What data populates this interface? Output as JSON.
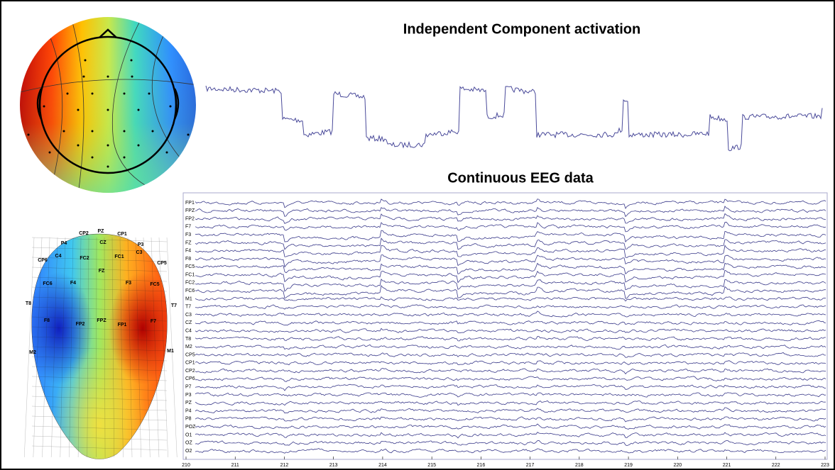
{
  "ic_title": "Independent Component activation",
  "eeg_title": "Continuous EEG data",
  "channels": [
    "FP1",
    "FPZ",
    "FP2",
    "F7",
    "F3",
    "FZ",
    "F4",
    "F8",
    "FC5",
    "FC1",
    "FC2",
    "FC6",
    "M1",
    "T7",
    "C3",
    "CZ",
    "C4",
    "T8",
    "M2",
    "CP5",
    "CP1",
    "CP2",
    "CP6",
    "P7",
    "P3",
    "PZ",
    "P4",
    "P8",
    "POZ",
    "O1",
    "OZ",
    "O2"
  ],
  "time_ticks": [
    210,
    211,
    212,
    213,
    214,
    215,
    216,
    217,
    218,
    219,
    220,
    221,
    222,
    223
  ],
  "head_labels": [
    "CP2",
    "PZ",
    "CP1",
    "P4",
    "CZ",
    "P3",
    "C4",
    "FC2",
    "FC1",
    "C3",
    "CP6",
    "CP5",
    "FZ",
    "FC6",
    "F4",
    "F3",
    "FC5",
    "T8",
    "T7",
    "F8",
    "FP2",
    "FPZ",
    "FP1",
    "F7",
    "M2",
    "M1"
  ]
}
